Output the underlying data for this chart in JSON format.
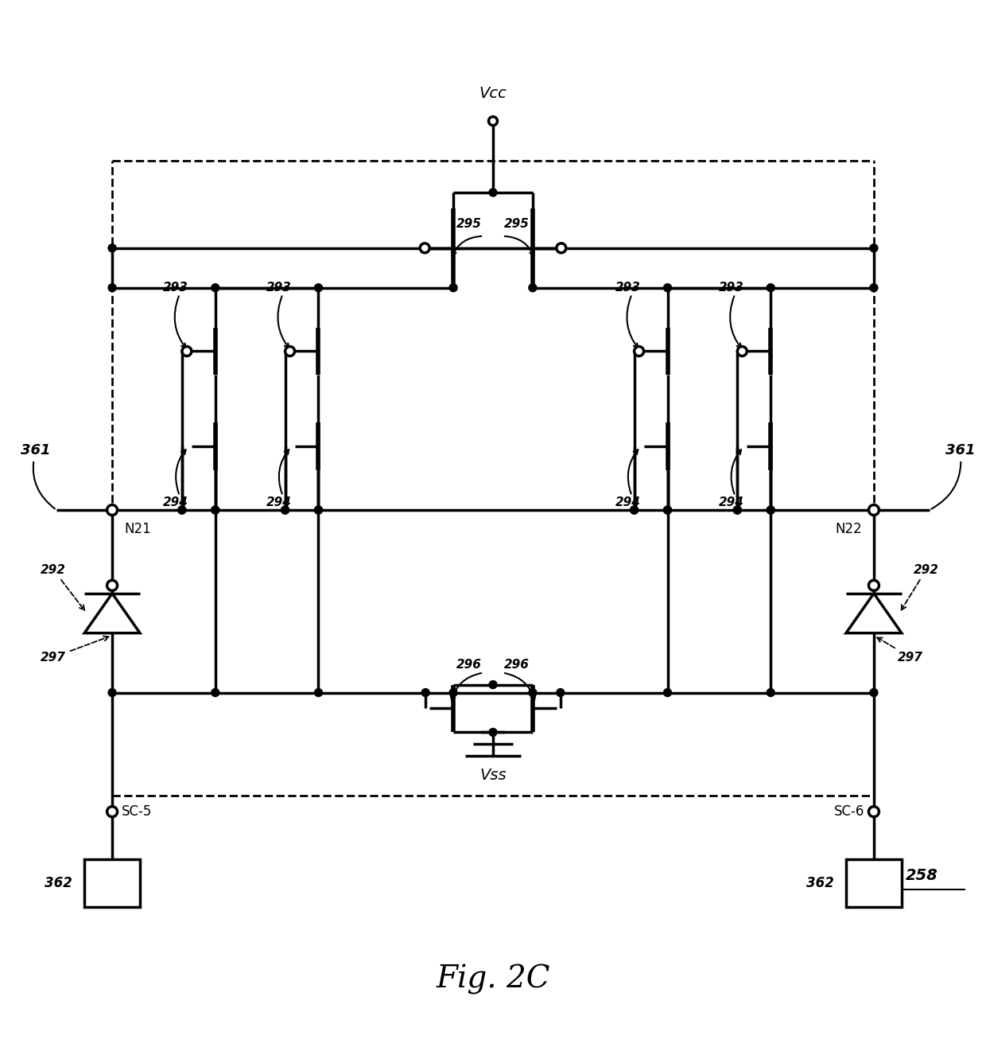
{
  "title": "Fig. 2C",
  "label_258": "258",
  "label_vcc": "Vcc",
  "label_vss": "Vss",
  "label_n21": "N21",
  "label_n22": "N22",
  "label_sc5": "SC-5",
  "label_sc6": "SC-6",
  "label_361": "361",
  "label_362": "362",
  "label_292": "292",
  "label_293": "293",
  "label_294": "294",
  "label_295": "295",
  "label_296": "296",
  "label_297": "297",
  "bg_color": "#ffffff",
  "line_color": "#000000",
  "line_width": 2.5
}
